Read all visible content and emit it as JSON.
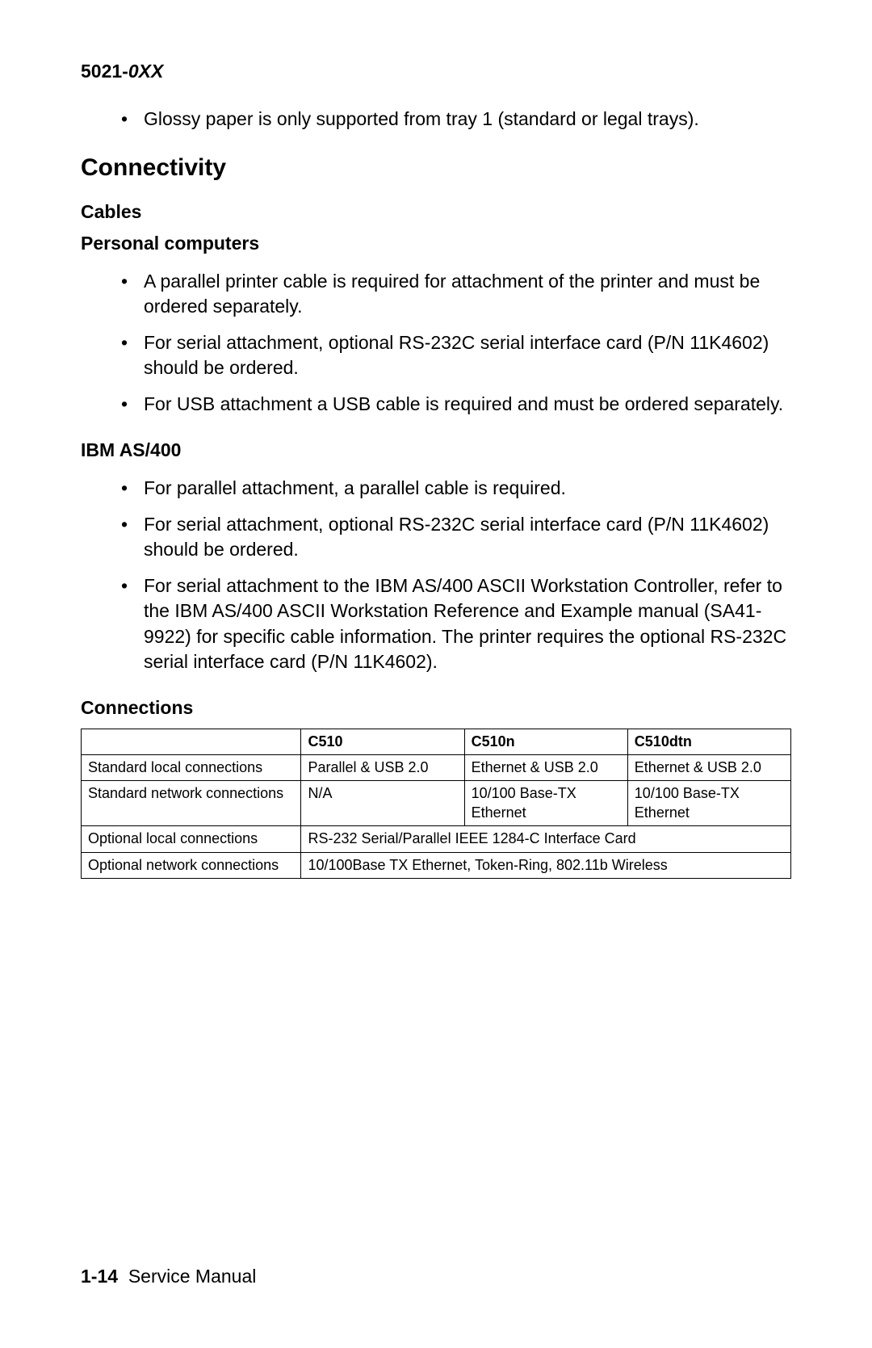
{
  "header": {
    "code_prefix": "5021-",
    "code_suffix": "0XX"
  },
  "intro_bullet": "Glossy paper is only supported from tray 1 (standard or legal trays).",
  "section_title": "Connectivity",
  "cables": {
    "heading": "Cables",
    "personal_computers": {
      "heading": "Personal computers",
      "items": [
        "A parallel printer cable is required for attachment of the printer and must be ordered separately.",
        "For serial attachment, optional RS-232C serial interface card (P/N 11K4602) should be ordered.",
        "For USB attachment a USB cable is required and must be ordered separately."
      ]
    },
    "ibm_as400": {
      "heading": "IBM AS/400",
      "items": [
        "For parallel attachment, a parallel cable is required.",
        "For serial attachment, optional RS-232C serial interface card (P/N 11K4602) should be ordered.",
        "For serial attachment to the IBM AS/400 ASCII Workstation Controller, refer to the IBM AS/400 ASCII Workstation Reference and Example manual (SA41-9922) for specific cable information. The printer requires the optional RS-232C serial interface card (P/N 11K4602)."
      ]
    }
  },
  "connections": {
    "heading": "Connections",
    "table": {
      "columns": [
        "",
        "C510",
        "C510n",
        "C510dtn"
      ],
      "rows": [
        {
          "label": "Standard local connections",
          "c510": "Parallel & USB 2.0",
          "c510n": "Ethernet & USB 2.0",
          "c510dtn": "Ethernet & USB 2.0"
        },
        {
          "label": "Standard network connections",
          "c510": "N/A",
          "c510n": "10/100 Base-TX Ethernet",
          "c510dtn": "10/100 Base-TX Ethernet"
        },
        {
          "label": "Optional local connections",
          "merged": "RS-232 Serial/Parallel IEEE 1284-C Interface Card"
        },
        {
          "label": "Optional network connections",
          "merged": "10/100Base TX Ethernet, Token-Ring, 802.11b Wireless"
        }
      ]
    }
  },
  "footer": {
    "page_number": "1-14",
    "label": "Service Manual"
  },
  "styles": {
    "body_font_size": 23,
    "table_font_size": 18,
    "heading_font_size": 30,
    "text_color": "#000000",
    "background_color": "#ffffff",
    "border_color": "#000000"
  }
}
